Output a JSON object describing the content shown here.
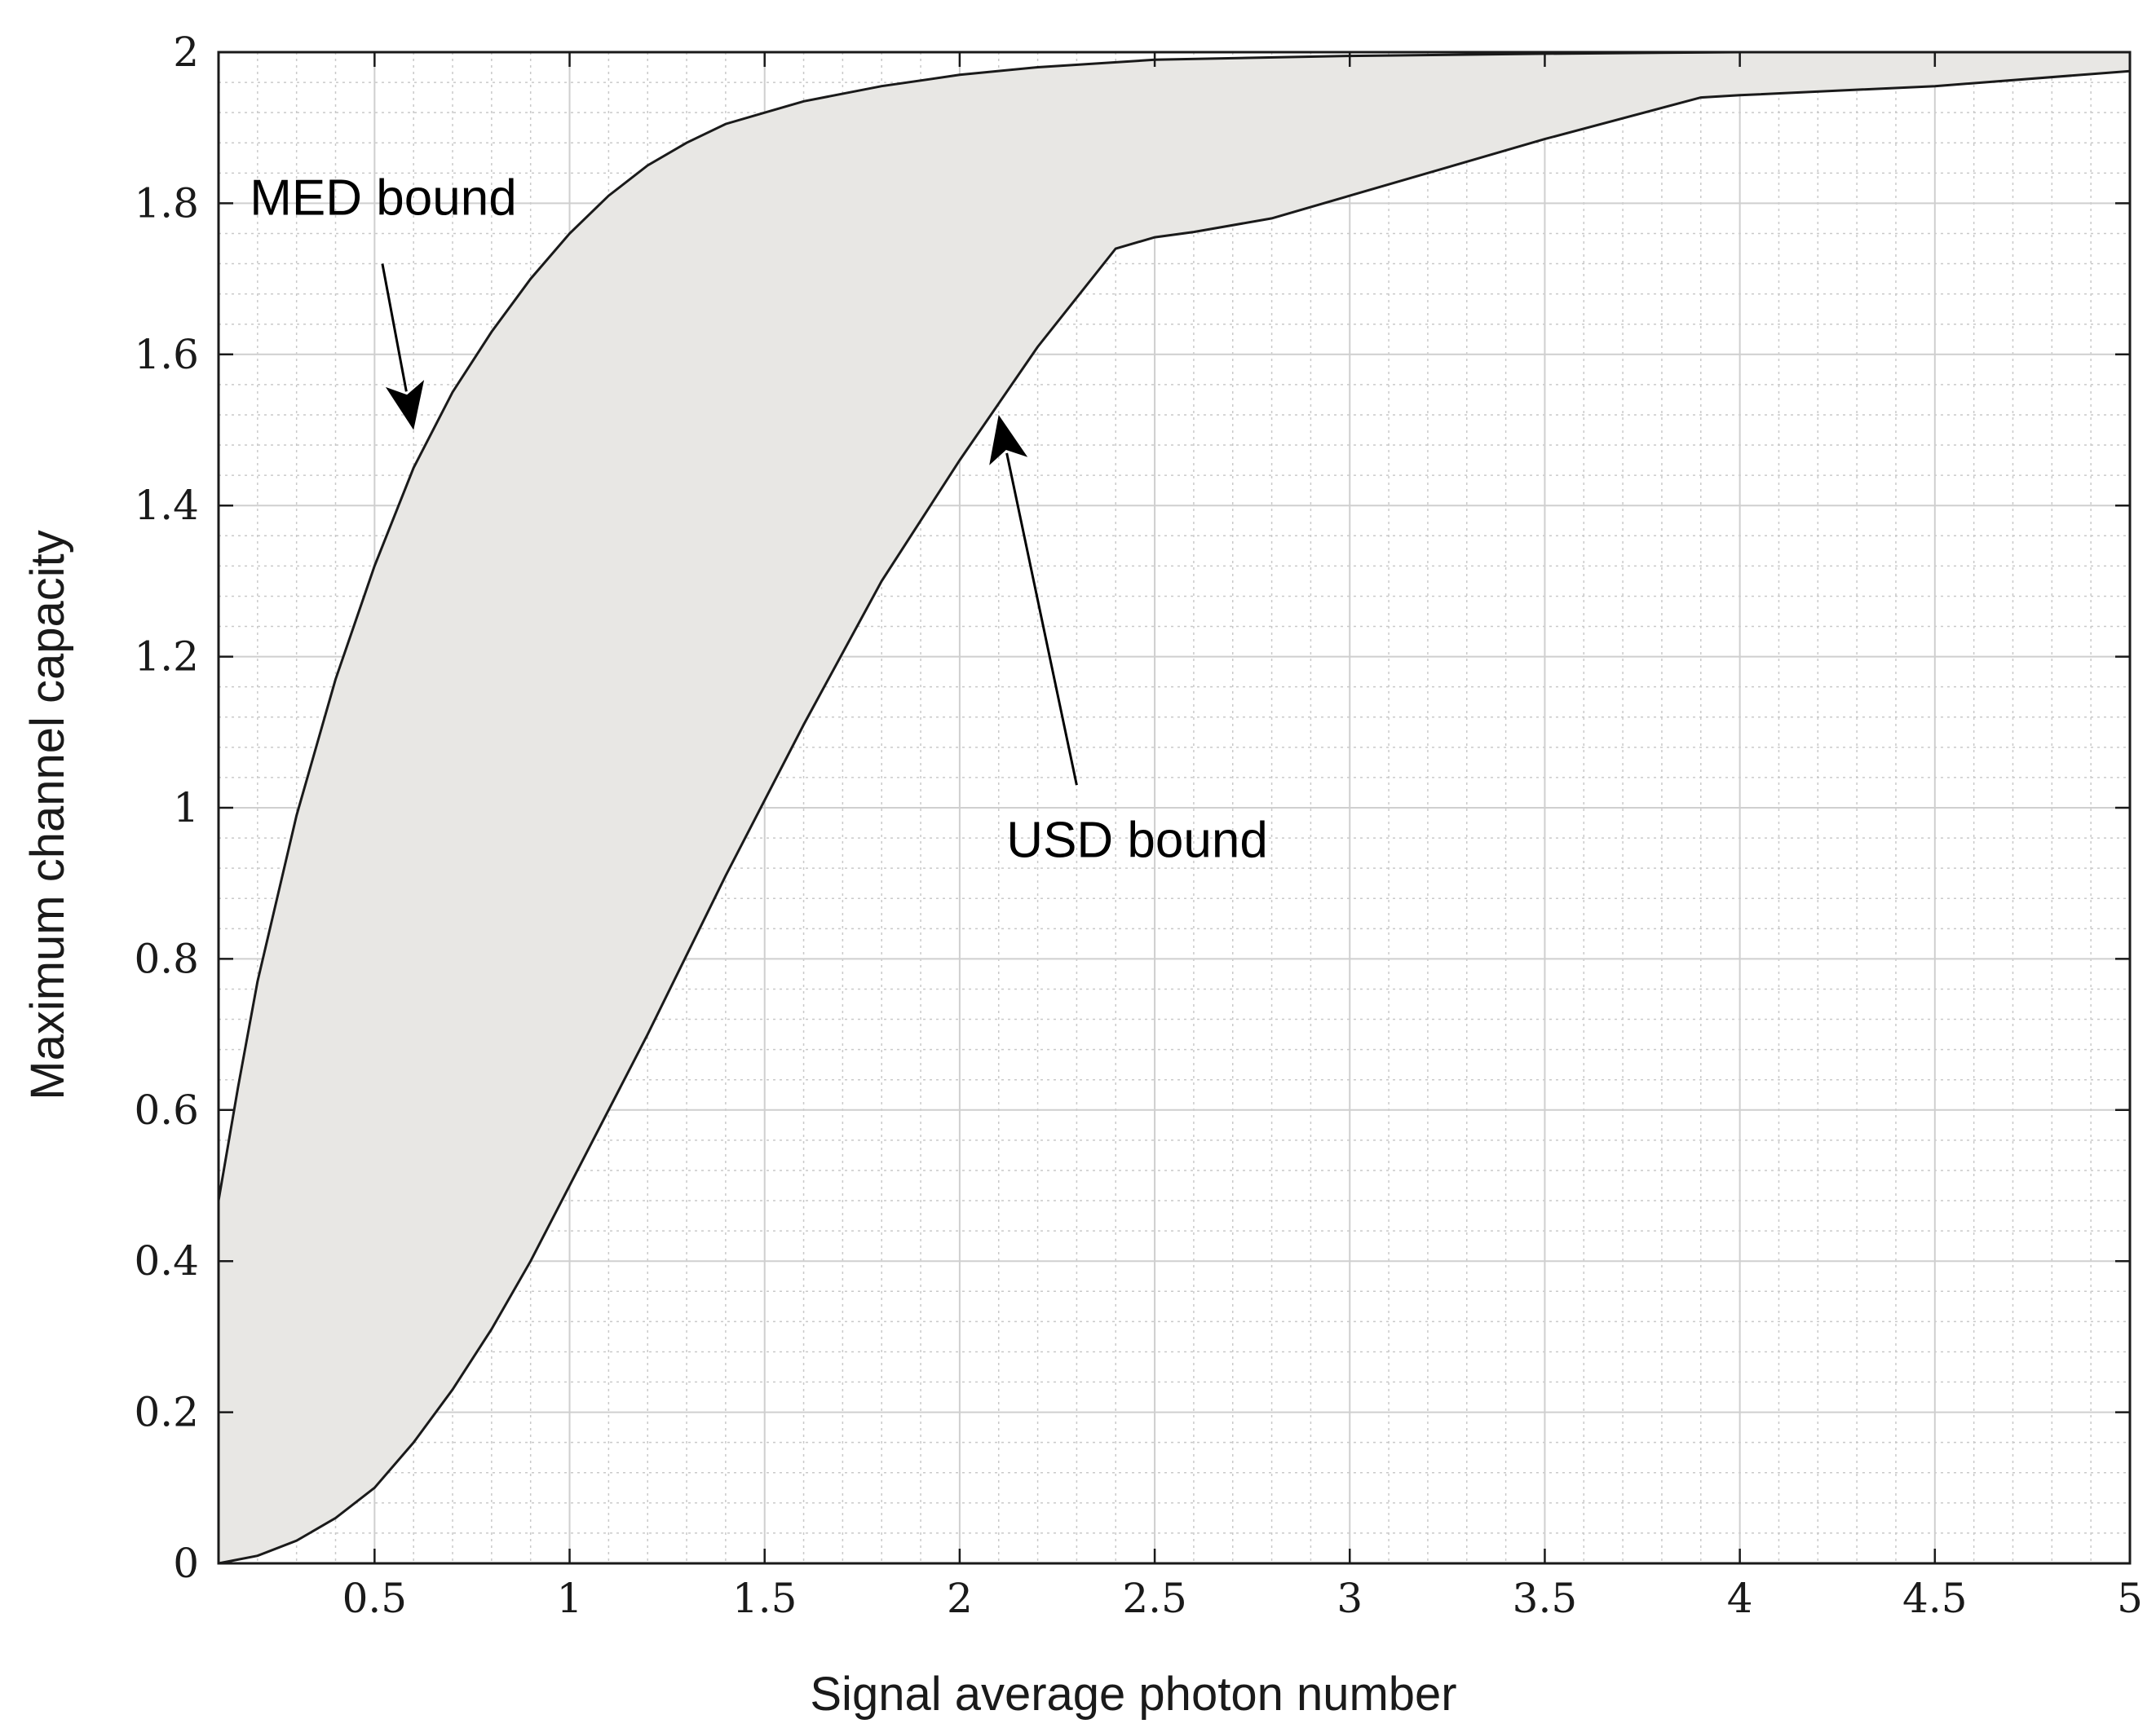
{
  "chart_data": {
    "type": "area",
    "xlabel": "Signal average photon number",
    "ylabel": "Maximum channel capacity",
    "xlim": [
      0.1,
      5
    ],
    "ylim": [
      0,
      2
    ],
    "x_ticks": [
      0.5,
      1,
      1.5,
      2,
      2.5,
      3,
      3.5,
      4,
      4.5,
      5
    ],
    "x_tick_labels": [
      "0.5",
      "1",
      "1.5",
      "2",
      "2.5",
      "3",
      "3.5",
      "4",
      "4.5",
      "5"
    ],
    "y_ticks": [
      0,
      0.2,
      0.4,
      0.6,
      0.8,
      1,
      1.2,
      1.4,
      1.6,
      1.8,
      2
    ],
    "y_tick_labels": [
      "0",
      "0.2",
      "0.4",
      "0.6",
      "0.8",
      "1",
      "1.2",
      "1.4",
      "1.6",
      "1.8",
      "2"
    ],
    "grid": true,
    "minor_grid": true,
    "fill_color": "#e8e7e4",
    "line_color": "#1a1a1a",
    "series": [
      {
        "x": [
          0.1,
          0.15,
          0.2,
          0.3,
          0.4,
          0.5,
          0.6,
          0.7,
          0.8,
          0.9,
          1.0,
          1.1,
          1.2,
          1.3,
          1.4,
          1.5,
          1.6,
          1.8,
          2.0,
          2.2,
          2.5,
          3.0,
          3.5,
          4.0,
          5.0
        ],
        "y": [
          0.48,
          0.63,
          0.77,
          0.99,
          1.17,
          1.32,
          1.45,
          1.55,
          1.63,
          1.7,
          1.76,
          1.81,
          1.85,
          1.88,
          1.905,
          1.92,
          1.935,
          1.955,
          1.97,
          1.98,
          1.99,
          1.995,
          1.998,
          2.0,
          2.0
        ]
      },
      {
        "x": [
          0.1,
          0.2,
          0.3,
          0.4,
          0.5,
          0.6,
          0.7,
          0.8,
          0.9,
          1.0,
          1.2,
          1.4,
          1.6,
          1.8,
          2.0,
          2.2,
          2.4,
          2.5,
          2.6,
          2.8,
          3.0,
          3.2,
          3.5,
          3.9,
          4.0,
          4.5,
          5.0
        ],
        "y": [
          0.0,
          0.01,
          0.03,
          0.06,
          0.1,
          0.16,
          0.23,
          0.31,
          0.4,
          0.5,
          0.7,
          0.91,
          1.11,
          1.3,
          1.46,
          1.61,
          1.74,
          1.755,
          1.762,
          1.78,
          1.81,
          1.84,
          1.885,
          1.94,
          1.943,
          1.955,
          1.975
        ]
      }
    ],
    "annotations": [
      {
        "text": "MED bound",
        "x": 0.18,
        "y": 1.785,
        "arrow_from": [
          0.52,
          1.72
        ],
        "arrow_to": [
          0.6,
          1.5
        ]
      },
      {
        "text": "USD bound",
        "x": 2.12,
        "y": 0.935,
        "arrow_from": [
          2.3,
          1.03
        ],
        "arrow_to": [
          2.1,
          1.52
        ]
      }
    ]
  }
}
